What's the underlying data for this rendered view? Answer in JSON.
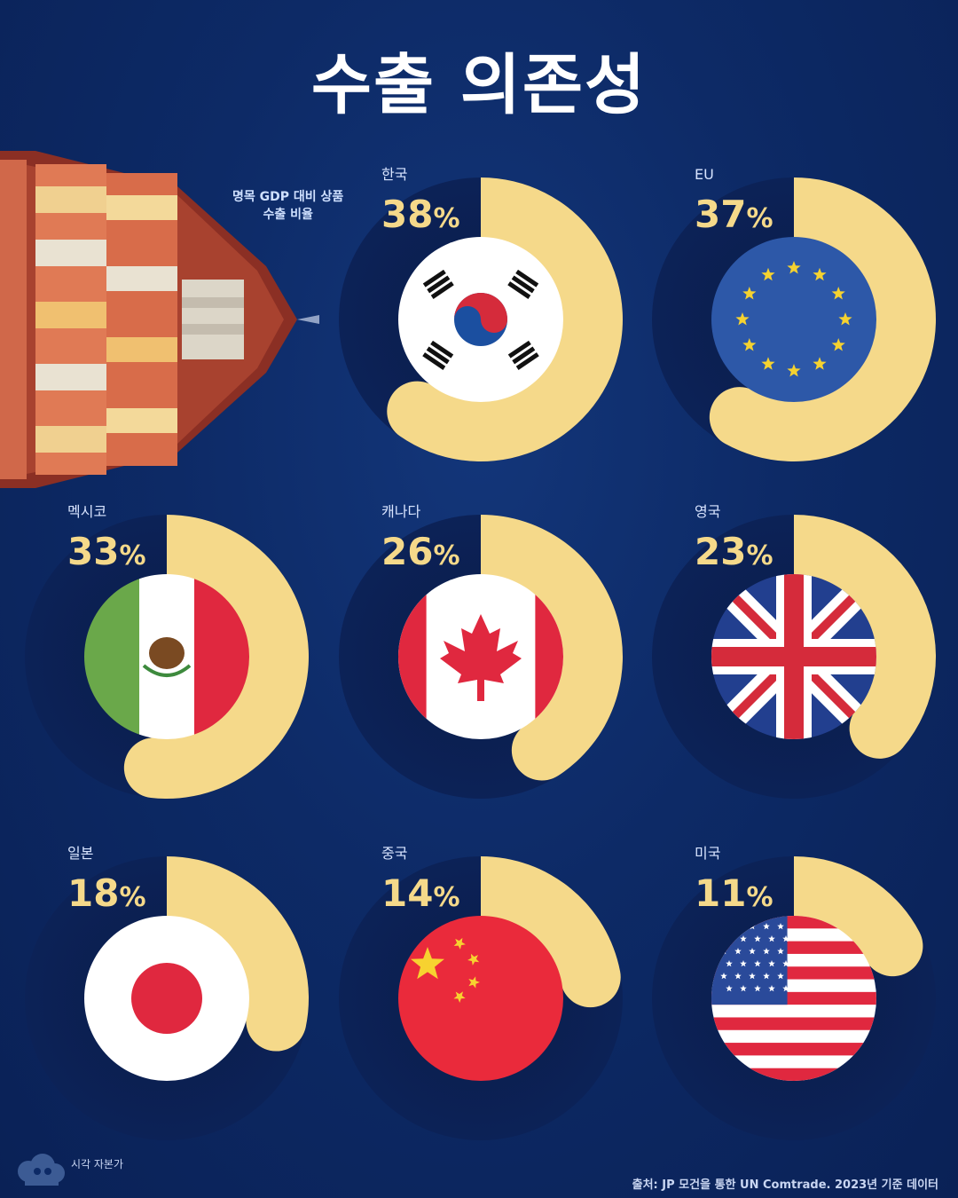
{
  "title": "수출 의존성",
  "subtitle": "명목 GDP 대비 상품\n수출 비율",
  "colors": {
    "background": "#0d2a66",
    "arc": "#f5d98a",
    "plate": "#0b1f4f"
  },
  "chart_data": {
    "type": "radial-bar",
    "unit": "%",
    "countries": [
      {
        "name": "한국",
        "value": 38,
        "flag": "korea-flag"
      },
      {
        "name": "EU",
        "value": 37,
        "flag": "eu-flag"
      },
      {
        "name": "멕시코",
        "value": 33,
        "flag": "mexico-flag"
      },
      {
        "name": "캐나다",
        "value": 26,
        "flag": "canada-flag"
      },
      {
        "name": "영국",
        "value": 23,
        "flag": "uk-flag"
      },
      {
        "name": "일본",
        "value": 18,
        "flag": "japan-flag"
      },
      {
        "name": "중국",
        "value": 14,
        "flag": "china-flag"
      },
      {
        "name": "미국",
        "value": 11,
        "flag": "usa-flag"
      }
    ]
  },
  "footer": {
    "brand": "시각 자본가",
    "source": "출처: JP 모건을 통한 UN Comtrade. 2023년 기준 데이터"
  }
}
